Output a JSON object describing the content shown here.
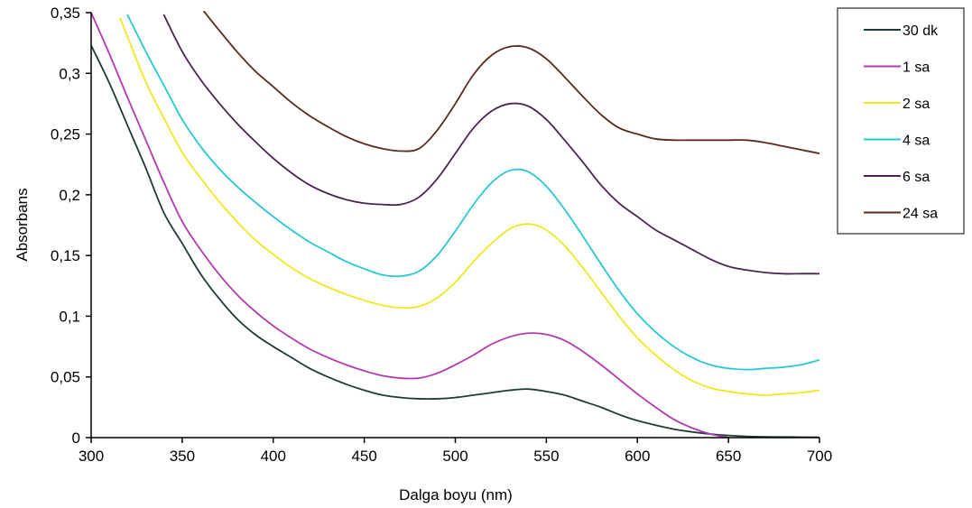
{
  "chart_data": {
    "type": "line",
    "xlabel": "Dalga boyu (nm)",
    "ylabel": "Absorbans",
    "xlim": [
      300,
      700
    ],
    "ylim": [
      0,
      0.35
    ],
    "x_ticks": [
      300,
      350,
      400,
      450,
      500,
      550,
      600,
      650,
      700
    ],
    "x_tick_labels": [
      "300",
      "350",
      "400",
      "450",
      "500",
      "550",
      "600",
      "650",
      "700"
    ],
    "y_ticks": [
      0,
      0.05,
      0.1,
      0.15,
      0.2,
      0.25,
      0.3,
      0.35
    ],
    "y_tick_labels": [
      "0",
      "0,05",
      "0,1",
      "0,15",
      "0,2",
      "0,25",
      "0,3",
      "0,35"
    ],
    "grid": false,
    "legend_position": "top-right",
    "series": [
      {
        "name": "30 dk",
        "color": "#1f3b3b",
        "x": [
          300,
          310,
          320,
          330,
          340,
          350,
          360,
          370,
          380,
          390,
          400,
          410,
          420,
          430,
          440,
          450,
          460,
          470,
          480,
          490,
          500,
          510,
          520,
          530,
          540,
          550,
          560,
          570,
          580,
          590,
          600,
          620,
          640,
          660,
          680,
          700
        ],
        "values": [
          0.323,
          0.292,
          0.257,
          0.222,
          0.185,
          0.16,
          0.135,
          0.115,
          0.098,
          0.085,
          0.075,
          0.066,
          0.057,
          0.05,
          0.044,
          0.039,
          0.035,
          0.033,
          0.032,
          0.032,
          0.033,
          0.035,
          0.037,
          0.039,
          0.04,
          0.038,
          0.035,
          0.03,
          0.025,
          0.019,
          0.014,
          0.007,
          0.003,
          0.001,
          0.0005,
          0.0003
        ]
      },
      {
        "name": "1 sa",
        "color": "#b23aaf",
        "x": [
          300,
          310,
          320,
          330,
          340,
          350,
          360,
          370,
          380,
          390,
          400,
          410,
          420,
          430,
          440,
          450,
          460,
          470,
          480,
          490,
          500,
          510,
          520,
          530,
          540,
          550,
          560,
          570,
          580,
          590,
          600,
          610,
          620,
          630,
          640,
          650
        ],
        "values": [
          0.35,
          0.316,
          0.28,
          0.245,
          0.21,
          0.178,
          0.155,
          0.135,
          0.118,
          0.104,
          0.092,
          0.082,
          0.073,
          0.066,
          0.06,
          0.055,
          0.051,
          0.049,
          0.049,
          0.053,
          0.06,
          0.068,
          0.077,
          0.083,
          0.086,
          0.085,
          0.08,
          0.071,
          0.06,
          0.048,
          0.036,
          0.025,
          0.015,
          0.008,
          0.003,
          0.0
        ]
      },
      {
        "name": "2 sa",
        "color": "#f0e81e",
        "x": [
          316,
          320,
          330,
          340,
          350,
          360,
          370,
          380,
          390,
          400,
          410,
          420,
          430,
          440,
          450,
          460,
          470,
          480,
          490,
          500,
          510,
          520,
          530,
          540,
          550,
          560,
          570,
          580,
          590,
          600,
          610,
          620,
          630,
          640,
          650,
          660,
          670,
          680,
          690,
          700
        ],
        "values": [
          0.345,
          0.33,
          0.293,
          0.263,
          0.235,
          0.214,
          0.195,
          0.178,
          0.163,
          0.151,
          0.14,
          0.131,
          0.124,
          0.118,
          0.113,
          0.109,
          0.107,
          0.108,
          0.115,
          0.128,
          0.145,
          0.16,
          0.172,
          0.176,
          0.171,
          0.158,
          0.14,
          0.12,
          0.1,
          0.082,
          0.068,
          0.056,
          0.047,
          0.041,
          0.038,
          0.036,
          0.035,
          0.036,
          0.037,
          0.039
        ]
      },
      {
        "name": "4 sa",
        "color": "#27c8d2",
        "x": [
          320,
          330,
          340,
          350,
          360,
          370,
          380,
          390,
          400,
          410,
          420,
          430,
          440,
          450,
          460,
          470,
          480,
          490,
          500,
          510,
          520,
          530,
          540,
          550,
          560,
          570,
          580,
          590,
          600,
          610,
          620,
          630,
          640,
          650,
          660,
          670,
          680,
          690,
          700
        ],
        "values": [
          0.348,
          0.318,
          0.29,
          0.262,
          0.24,
          0.222,
          0.207,
          0.194,
          0.182,
          0.171,
          0.161,
          0.153,
          0.145,
          0.139,
          0.134,
          0.133,
          0.137,
          0.15,
          0.17,
          0.192,
          0.21,
          0.22,
          0.219,
          0.207,
          0.188,
          0.166,
          0.143,
          0.121,
          0.102,
          0.087,
          0.075,
          0.066,
          0.06,
          0.057,
          0.056,
          0.057,
          0.058,
          0.06,
          0.064
        ]
      },
      {
        "name": "6 sa",
        "color": "#4a2550",
        "x": [
          340,
          350,
          360,
          370,
          380,
          390,
          400,
          410,
          420,
          430,
          440,
          450,
          460,
          470,
          480,
          490,
          500,
          510,
          520,
          530,
          540,
          550,
          560,
          570,
          580,
          590,
          600,
          610,
          620,
          630,
          640,
          650,
          660,
          670,
          680,
          690,
          700
        ],
        "values": [
          0.348,
          0.318,
          0.295,
          0.276,
          0.259,
          0.244,
          0.23,
          0.218,
          0.208,
          0.201,
          0.196,
          0.193,
          0.192,
          0.192,
          0.198,
          0.213,
          0.234,
          0.255,
          0.269,
          0.275,
          0.273,
          0.262,
          0.245,
          0.227,
          0.208,
          0.193,
          0.182,
          0.171,
          0.163,
          0.155,
          0.147,
          0.141,
          0.138,
          0.136,
          0.135,
          0.135,
          0.135
        ]
      },
      {
        "name": "24 sa",
        "color": "#5a2a1e",
        "x": [
          362,
          370,
          380,
          390,
          400,
          410,
          420,
          430,
          440,
          450,
          460,
          470,
          480,
          490,
          500,
          510,
          520,
          530,
          540,
          550,
          560,
          570,
          580,
          590,
          600,
          610,
          620,
          630,
          640,
          650,
          660,
          670,
          680,
          690,
          700
        ],
        "values": [
          0.351,
          0.336,
          0.318,
          0.302,
          0.289,
          0.276,
          0.265,
          0.256,
          0.248,
          0.242,
          0.238,
          0.236,
          0.238,
          0.253,
          0.275,
          0.299,
          0.315,
          0.322,
          0.321,
          0.312,
          0.297,
          0.281,
          0.266,
          0.255,
          0.25,
          0.246,
          0.245,
          0.245,
          0.245,
          0.245,
          0.245,
          0.243,
          0.24,
          0.237,
          0.234
        ]
      }
    ]
  }
}
